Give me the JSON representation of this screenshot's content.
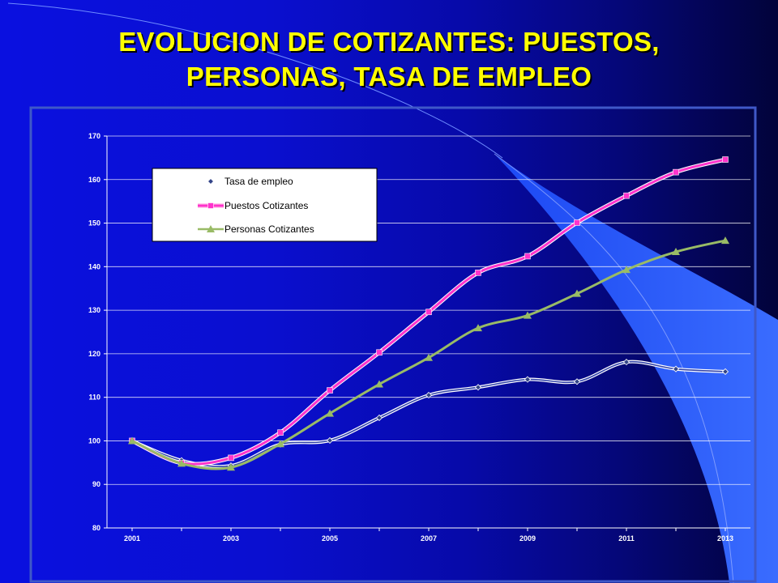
{
  "slide": {
    "title_line1": "EVOLUCION DE COTIZANTES: PUESTOS,",
    "title_line2": "PERSONAS, TASA DE EMPLEO",
    "background_color": "#0a10e0",
    "title_color": "#ffff00"
  },
  "chart_data": {
    "type": "line",
    "title": "",
    "xlabel": "",
    "ylabel": "",
    "x": [
      2001,
      2002,
      2003,
      2004,
      2005,
      2006,
      2007,
      2008,
      2009,
      2010,
      2011,
      2012,
      2013
    ],
    "x_tick_labels": [
      "2001",
      "2003",
      "2005",
      "2007",
      "2009",
      "2011",
      "2013"
    ],
    "ylim": [
      80,
      170
    ],
    "y_ticks": [
      80,
      90,
      100,
      110,
      120,
      130,
      140,
      150,
      160,
      170
    ],
    "grid": true,
    "legend_position": "top-left",
    "series": [
      {
        "name": "Tasa de empleo",
        "color": "#ffffff",
        "marker": "diamond",
        "values": [
          100,
          95.5,
          94.3,
          99.2,
          100.1,
          105.3,
          110.5,
          112.3,
          114.1,
          113.6,
          118.1,
          116.5,
          115.9
        ]
      },
      {
        "name": "Puestos Cotizantes",
        "color": "#ff33cc",
        "marker": "square",
        "values": [
          100,
          94.9,
          96.1,
          101.9,
          111.6,
          120.3,
          129.6,
          138.6,
          142.4,
          150.1,
          156.3,
          161.7,
          164.6
        ]
      },
      {
        "name": "Personas Cotizantes",
        "color": "#99bb66",
        "marker": "triangle",
        "values": [
          100,
          94.8,
          93.9,
          99.3,
          106.3,
          113.0,
          119.1,
          125.9,
          128.8,
          133.8,
          139.3,
          143.4,
          146.0
        ]
      }
    ]
  }
}
